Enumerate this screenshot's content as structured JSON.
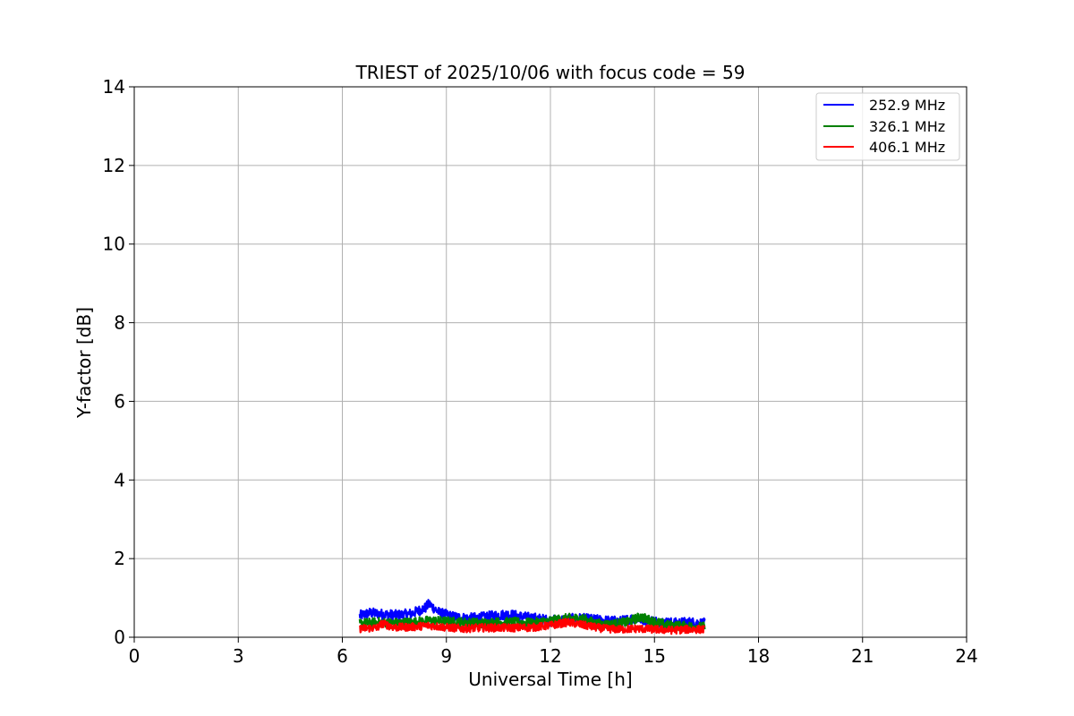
{
  "chart_data": {
    "type": "line",
    "title": "TRIEST of 2025/10/06 with focus code = 59",
    "xlabel": "Universal Time [h]",
    "ylabel": "Y-factor [dB]",
    "xlim": [
      0,
      24
    ],
    "ylim": [
      0,
      14
    ],
    "xticks": [
      "0",
      "3",
      "6",
      "9",
      "12",
      "15",
      "18",
      "21",
      "24"
    ],
    "yticks": [
      "0",
      "2",
      "4",
      "6",
      "8",
      "10",
      "12",
      "14"
    ],
    "grid": true,
    "legend_position": "top-right",
    "series": [
      {
        "name": "252.9 MHz",
        "color": "#0000ff",
        "points": [
          [
            6.5,
            0.55
          ],
          [
            6.8,
            0.62
          ],
          [
            7.2,
            0.58
          ],
          [
            7.6,
            0.56
          ],
          [
            8.0,
            0.6
          ],
          [
            8.4,
            0.75
          ],
          [
            8.5,
            0.85
          ],
          [
            8.8,
            0.62
          ],
          [
            9.2,
            0.52
          ],
          [
            9.6,
            0.48
          ],
          [
            10.0,
            0.5
          ],
          [
            10.4,
            0.55
          ],
          [
            10.8,
            0.58
          ],
          [
            11.2,
            0.52
          ],
          [
            11.6,
            0.48
          ],
          [
            12.0,
            0.42
          ],
          [
            12.4,
            0.45
          ],
          [
            12.8,
            0.48
          ],
          [
            13.2,
            0.45
          ],
          [
            13.6,
            0.42
          ],
          [
            14.0,
            0.4
          ],
          [
            14.4,
            0.48
          ],
          [
            14.8,
            0.44
          ],
          [
            15.2,
            0.38
          ],
          [
            15.6,
            0.36
          ],
          [
            16.0,
            0.38
          ],
          [
            16.45,
            0.35
          ]
        ],
        "noise_band": 0.26
      },
      {
        "name": "326.1 MHz",
        "color": "#008000",
        "points": [
          [
            6.5,
            0.35
          ],
          [
            7.0,
            0.38
          ],
          [
            7.5,
            0.36
          ],
          [
            8.0,
            0.38
          ],
          [
            8.5,
            0.42
          ],
          [
            9.0,
            0.4
          ],
          [
            9.5,
            0.38
          ],
          [
            10.0,
            0.36
          ],
          [
            10.5,
            0.38
          ],
          [
            11.0,
            0.38
          ],
          [
            11.5,
            0.36
          ],
          [
            12.0,
            0.42
          ],
          [
            12.5,
            0.48
          ],
          [
            12.9,
            0.48
          ],
          [
            13.3,
            0.35
          ],
          [
            13.7,
            0.32
          ],
          [
            14.2,
            0.38
          ],
          [
            14.6,
            0.52
          ],
          [
            14.9,
            0.42
          ],
          [
            15.4,
            0.3
          ],
          [
            15.9,
            0.28
          ],
          [
            16.45,
            0.26
          ]
        ],
        "noise_band": 0.24
      },
      {
        "name": "406.1 MHz",
        "color": "#ff0000",
        "points": [
          [
            6.5,
            0.22
          ],
          [
            7.0,
            0.24
          ],
          [
            7.15,
            0.35
          ],
          [
            7.5,
            0.25
          ],
          [
            8.0,
            0.26
          ],
          [
            8.5,
            0.3
          ],
          [
            9.0,
            0.25
          ],
          [
            9.5,
            0.22
          ],
          [
            10.0,
            0.24
          ],
          [
            10.5,
            0.24
          ],
          [
            11.0,
            0.24
          ],
          [
            11.5,
            0.25
          ],
          [
            12.0,
            0.3
          ],
          [
            12.5,
            0.38
          ],
          [
            13.0,
            0.3
          ],
          [
            13.5,
            0.22
          ],
          [
            14.0,
            0.2
          ],
          [
            14.5,
            0.22
          ],
          [
            15.0,
            0.2
          ],
          [
            15.5,
            0.18
          ],
          [
            16.0,
            0.2
          ],
          [
            16.45,
            0.2
          ]
        ],
        "noise_band": 0.2
      }
    ]
  }
}
